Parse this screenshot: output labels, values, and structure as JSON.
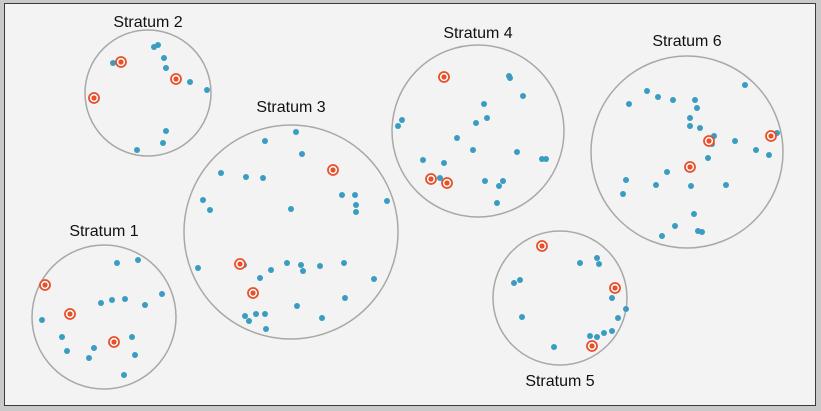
{
  "colors": {
    "background": "#f3f3f3",
    "border": "#3a3a3a",
    "circle_stroke": "#a8a8a8",
    "point": "#3b9cc2",
    "sampled": "#e8502a"
  },
  "strata": [
    {
      "id": 1,
      "label": "Stratum 1"
    },
    {
      "id": 2,
      "label": "Stratum 2"
    },
    {
      "id": 3,
      "label": "Stratum 3"
    },
    {
      "id": 4,
      "label": "Stratum 4"
    },
    {
      "id": 5,
      "label": "Stratum 5"
    },
    {
      "id": 6,
      "label": "Stratum 6"
    }
  ]
}
